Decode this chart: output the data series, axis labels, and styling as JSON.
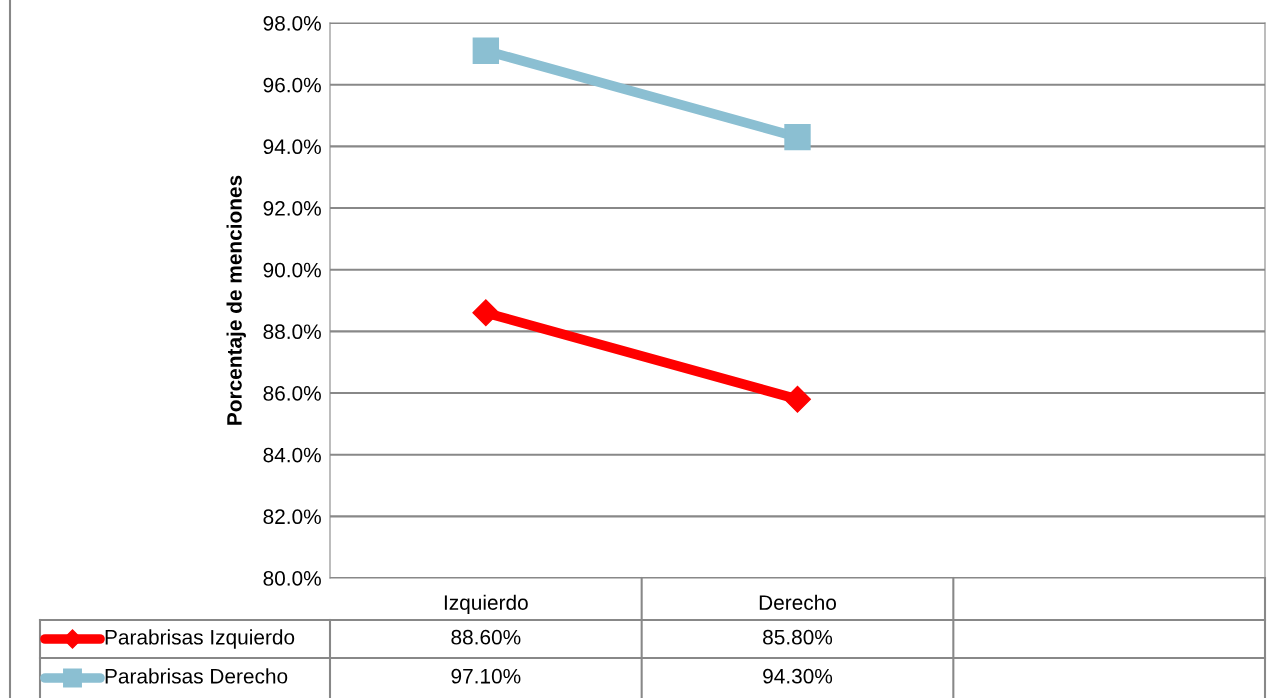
{
  "chart_data": {
    "type": "line",
    "ylabel": "Porcentaje de menciones",
    "categories": [
      "Izquierdo",
      "Derecho",
      null
    ],
    "series": [
      {
        "name": "Parabrisas Izquierdo",
        "color": "#ff0000",
        "marker": "diamond",
        "values": [
          88.6,
          85.8,
          null
        ],
        "value_labels": [
          "88.60%",
          "85.80%",
          null
        ]
      },
      {
        "name": "Parabrisas Derecho",
        "color": "#8bbfd2",
        "marker": "square",
        "values": [
          97.1,
          94.3,
          null
        ],
        "value_labels": [
          "97.10%",
          "94.30%",
          null
        ]
      }
    ],
    "ylim": [
      80,
      98
    ],
    "yticks": [
      {
        "value": 80,
        "label": "80.0%"
      },
      {
        "value": 82,
        "label": "82.0%"
      },
      {
        "value": 84,
        "label": "84.0%"
      },
      {
        "value": 86,
        "label": "86.0%"
      },
      {
        "value": 88,
        "label": "88.0%"
      },
      {
        "value": 90,
        "label": "90.0%"
      },
      {
        "value": 92,
        "label": "92.0%"
      },
      {
        "value": 94,
        "label": "94.0%"
      },
      {
        "value": 96,
        "label": "96.0%"
      },
      {
        "value": 98,
        "label": "98.0%"
      }
    ],
    "grid": "y",
    "legend": "bottom"
  }
}
